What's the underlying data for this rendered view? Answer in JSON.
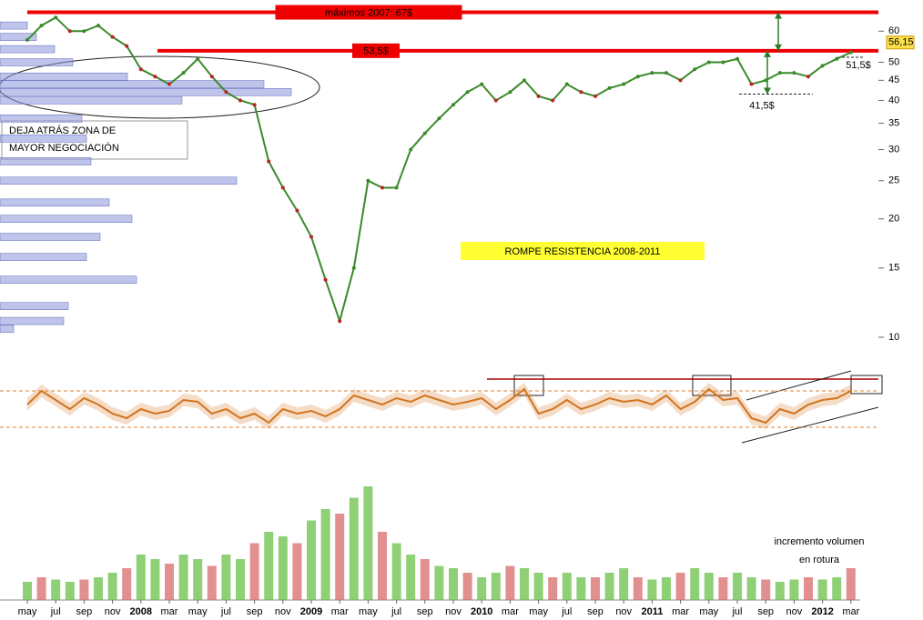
{
  "chart_data": [
    {
      "type": "line",
      "log_scale": true,
      "color": "#3a8a2a",
      "categories": [
        "may",
        null,
        "jul",
        null,
        "sep",
        null,
        "nov",
        null,
        "2008",
        null,
        "mar",
        null,
        "may",
        null,
        "jul",
        null,
        "sep",
        null,
        "nov",
        null,
        "2009",
        null,
        "mar",
        null,
        "may",
        null,
        "jul",
        null,
        "sep",
        null,
        "nov",
        null,
        "2010",
        null,
        "mar",
        null,
        "may",
        null,
        "jul",
        null,
        "sep",
        null,
        "nov",
        null,
        "2011",
        null,
        "mar",
        null,
        "may",
        null,
        "jul",
        null,
        "sep",
        null,
        "nov",
        null,
        "2012",
        null,
        "mar"
      ],
      "values": [
        57,
        62,
        65,
        60,
        60,
        62,
        58,
        55,
        48,
        46,
        44,
        47,
        51,
        46,
        42,
        40,
        39,
        28,
        24,
        21,
        18,
        14,
        11,
        15,
        25,
        24,
        24,
        30,
        33,
        36,
        39,
        42,
        44,
        40,
        42,
        45,
        41,
        40,
        44,
        42,
        41,
        43,
        44,
        46,
        47,
        47,
        45,
        48,
        50,
        50,
        51,
        44,
        45,
        47,
        47,
        46,
        49,
        51,
        53
      ],
      "ylim": [
        10,
        72
      ],
      "yticks": [
        10,
        15,
        20,
        25,
        30,
        35,
        40,
        45,
        50,
        60
      ],
      "last_price": {
        "value": 56.15,
        "label": "56,15"
      },
      "resistance_lines": [
        {
          "value": 67,
          "label": "máximos 2007: 67$"
        },
        {
          "value": 53.5,
          "label": "53,5$"
        }
      ],
      "levels": [
        {
          "value": 51.5,
          "label": "51,5$"
        },
        {
          "value": 41.5,
          "label": "41,5$"
        }
      ],
      "volume_profile": {
        "levels": [
          62,
          58,
          54,
          50,
          46,
          44,
          42,
          40,
          36,
          32,
          28,
          25,
          22,
          20,
          18,
          16,
          14,
          12,
          11,
          10.5
        ],
        "sizes": [
          30,
          40,
          60,
          80,
          140,
          290,
          320,
          200,
          90,
          95,
          100,
          260,
          120,
          145,
          110,
          95,
          150,
          75,
          70,
          15
        ],
        "color": "#8a96d8"
      },
      "annotations": [
        [
          "DEJA ATRÁS ZONA DE",
          "MAYOR NEGOCIACIÓN"
        ],
        [
          "ROMPE RESISTENCIA 2008-2011"
        ]
      ]
    },
    {
      "type": "line",
      "color": "#d2741e",
      "values": [
        55,
        70,
        60,
        50,
        62,
        55,
        45,
        40,
        50,
        45,
        48,
        60,
        58,
        45,
        50,
        40,
        45,
        35,
        50,
        45,
        48,
        42,
        50,
        65,
        60,
        55,
        62,
        58,
        65,
        60,
        55,
        58,
        62,
        50,
        60,
        72,
        45,
        50,
        60,
        50,
        55,
        62,
        58,
        60,
        55,
        65,
        50,
        58,
        72,
        60,
        62,
        40,
        35,
        50,
        45,
        55,
        60,
        62,
        70
      ],
      "ylim": [
        10,
        90
      ],
      "guides": [
        70,
        30
      ]
    },
    {
      "type": "bar",
      "color": "#6ac04a",
      "values": [
        8,
        10,
        9,
        8,
        9,
        10,
        12,
        14,
        20,
        18,
        16,
        20,
        18,
        15,
        20,
        18,
        25,
        30,
        28,
        25,
        35,
        40,
        38,
        45,
        50,
        30,
        25,
        20,
        18,
        15,
        14,
        12,
        10,
        12,
        15,
        14,
        12,
        10,
        12,
        10,
        10,
        12,
        14,
        10,
        9,
        10,
        12,
        14,
        12,
        10,
        12,
        10,
        9,
        8,
        9,
        10,
        9,
        10,
        14
      ],
      "ylim": [
        0,
        60
      ],
      "annotations": [
        "incremento volumen",
        "en rotura"
      ]
    }
  ]
}
